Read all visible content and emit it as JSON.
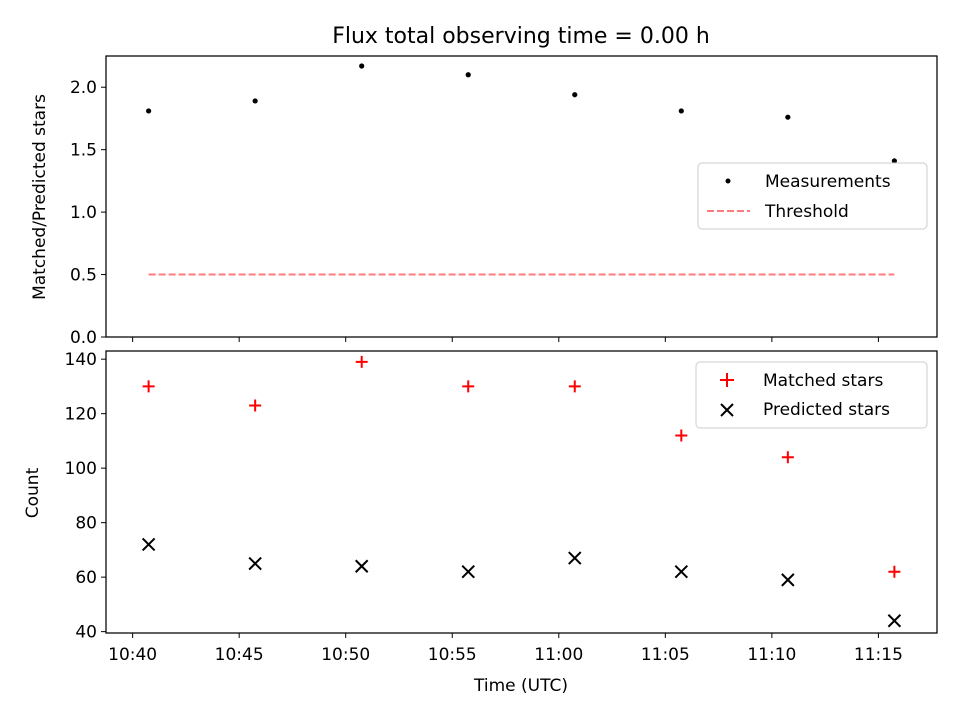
{
  "chart_data": [
    {
      "type": "scatter",
      "title": "Flux total observing time = 0.00 h",
      "xlabel": "",
      "ylabel": "Matched/Predicted stars",
      "x": [
        "10:40:45",
        "10:45:45",
        "10:50:45",
        "10:55:45",
        "11:00:45",
        "11:05:45",
        "11:10:45",
        "11:15:45"
      ],
      "xlim": [
        "10:38:45",
        "11:17:45"
      ],
      "ylim": [
        0,
        2.25
      ],
      "yticks": [
        0.0,
        0.5,
        1.0,
        1.5,
        2.0
      ],
      "ytick_labels": [
        "0.0",
        "0.5",
        "1.0",
        "1.5",
        "2.0"
      ],
      "series": [
        {
          "name": "Measurements",
          "marker": "dot",
          "color": "#000000",
          "values": [
            1.81,
            1.89,
            2.17,
            2.1,
            1.94,
            1.81,
            1.76,
            1.41
          ]
        },
        {
          "name": "Threshold",
          "style": "dashed-line",
          "color": "#ff7b7b",
          "x": [
            "10:40:45",
            "11:15:45"
          ],
          "values": [
            0.5,
            0.5
          ]
        }
      ],
      "legend_position": "center-right",
      "grid": false
    },
    {
      "type": "scatter",
      "title": "",
      "xlabel": "Time (UTC)",
      "ylabel": "Count",
      "x": [
        "10:40:45",
        "10:45:45",
        "10:50:45",
        "10:55:45",
        "11:00:45",
        "11:05:45",
        "11:10:45",
        "11:15:45"
      ],
      "xticks": [
        "10:40",
        "10:45",
        "10:50",
        "10:55",
        "11:00",
        "11:05",
        "11:10",
        "11:15"
      ],
      "xlim": [
        "10:38:45",
        "11:17:45"
      ],
      "ylim": [
        39.5,
        143
      ],
      "yticks": [
        40,
        60,
        80,
        100,
        120,
        140
      ],
      "ytick_labels": [
        "40",
        "60",
        "80",
        "100",
        "120",
        "140"
      ],
      "series": [
        {
          "name": "Matched stars",
          "marker": "plus",
          "color": "#ff0000",
          "values": [
            130,
            123,
            139,
            130,
            130,
            112,
            104,
            62
          ]
        },
        {
          "name": "Predicted stars",
          "marker": "x",
          "color": "#000000",
          "values": [
            72,
            65,
            64,
            62,
            67,
            62,
            59,
            44
          ]
        }
      ],
      "legend_position": "top-right",
      "grid": false
    }
  ]
}
